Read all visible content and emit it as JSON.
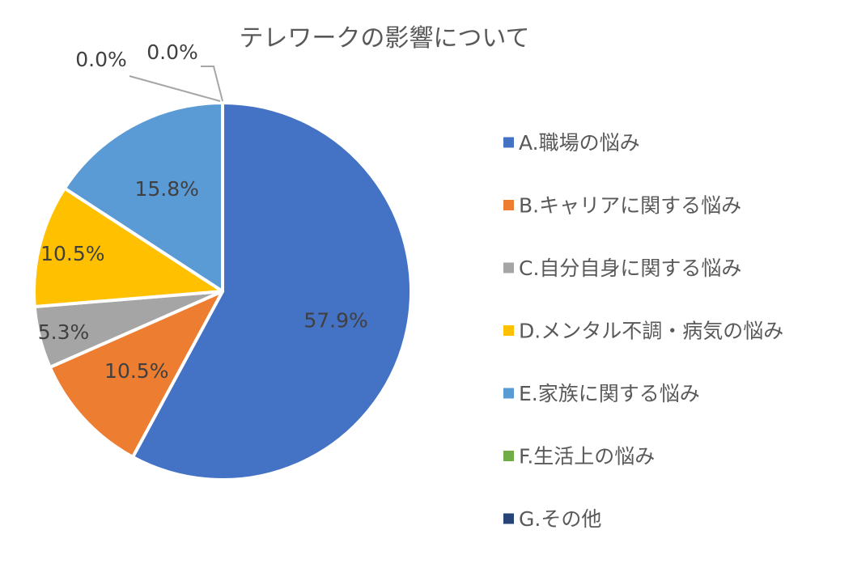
{
  "chart_data": {
    "type": "pie",
    "title": "テレワークの影響について",
    "slices": [
      {
        "label": "A.職場の悩み",
        "value": 57.9,
        "display": "57.9%",
        "color": "#4472C4"
      },
      {
        "label": "B.キャリアに関する悩み",
        "value": 10.5,
        "display": "10.5%",
        "color": "#ED7D31"
      },
      {
        "label": "C.自分自身に関する悩み",
        "value": 5.3,
        "display": "5.3%",
        "color": "#A5A5A5"
      },
      {
        "label": "D.メンタル不調・病気の悩み",
        "value": 10.5,
        "display": "10.5%",
        "color": "#FFC000"
      },
      {
        "label": "E.家族に関する悩み",
        "value": 15.8,
        "display": "15.8%",
        "color": "#5B9BD5"
      },
      {
        "label": "F.生活上の悩み",
        "value": 0.0,
        "display": "0.0%",
        "color": "#70AD47"
      },
      {
        "label": "G.その他",
        "value": 0.0,
        "display": "0.0%",
        "color": "#264478"
      }
    ],
    "legend_position": "right",
    "unit": "%"
  }
}
